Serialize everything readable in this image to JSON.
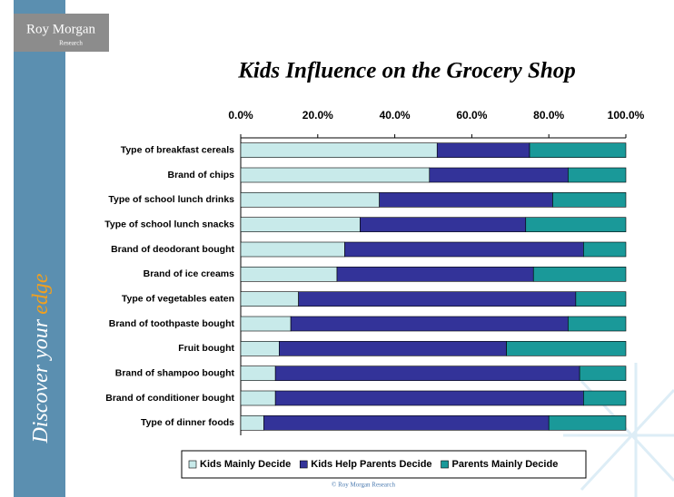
{
  "slide": {
    "logo": "Roy Morgan",
    "logo_sub": "Research",
    "tagline": "Discover your",
    "tagline_accent": "edge",
    "footer": "© Roy Morgan Research"
  },
  "chart_data": {
    "type": "stacked-barh",
    "title": "Kids Influence on the Grocery Shop",
    "categories": [
      "Type of breakfast cereals",
      "Brand of chips",
      "Type of school lunch drinks",
      "Type of school lunch snacks",
      "Brand of deodorant bought",
      "Brand of ice creams",
      "Type of vegetables eaten",
      "Brand of toothpaste bought",
      "Fruit bought",
      "Brand of shampoo bought",
      "Brand of conditioner bought",
      "Type of dinner foods"
    ],
    "series": [
      {
        "name": "Kids Mainly Decide",
        "color": "#c8eaea",
        "values": [
          51,
          49,
          36,
          31,
          27,
          25,
          15,
          13,
          10,
          9,
          9,
          6
        ]
      },
      {
        "name": "Kids Help Parents Decide",
        "color": "#333399",
        "values": [
          24,
          36,
          45,
          43,
          62,
          51,
          72,
          72,
          59,
          79,
          80,
          74
        ]
      },
      {
        "name": "Parents Mainly Decide",
        "color": "#1a9999",
        "values": [
          25,
          15,
          19,
          26,
          11,
          24,
          13,
          15,
          31,
          12,
          11,
          20
        ]
      }
    ],
    "xlim": [
      0,
      100
    ],
    "xticks": [
      {
        "value": 0,
        "label": "0.0%"
      },
      {
        "value": 20,
        "label": "20.0%"
      },
      {
        "value": 40,
        "label": "40.0%"
      },
      {
        "value": 60,
        "label": "60.0%"
      },
      {
        "value": 80,
        "label": "80.0%"
      },
      {
        "value": 100,
        "label": "100.0%"
      }
    ],
    "legend": "bottom",
    "grid": false
  }
}
